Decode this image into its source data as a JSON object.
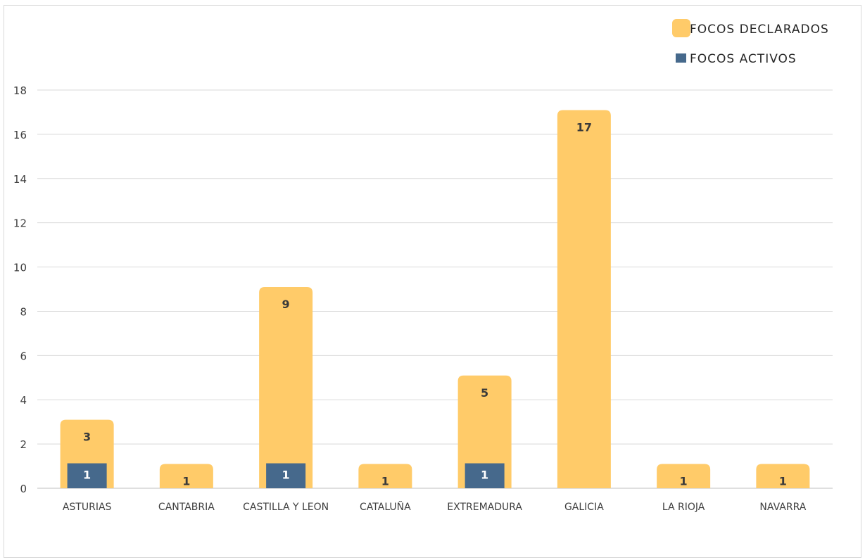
{
  "chart_data": {
    "type": "bar",
    "categories": [
      "ASTURIAS",
      "CANTABRIA",
      "CASTILLA Y LEON",
      "CATALUÑA",
      "EXTREMADURA",
      "GALICIA",
      "LA RIOJA",
      "NAVARRA"
    ],
    "series": [
      {
        "name": "FOCOS DECLARADOS",
        "values": [
          3,
          1,
          9,
          1,
          5,
          17,
          1,
          1
        ],
        "color": "#FFCB69"
      },
      {
        "name": "FOCOS ACTIVOS",
        "values": [
          1,
          0,
          1,
          0,
          1,
          0,
          0,
          0
        ],
        "color": "#46698C"
      }
    ],
    "ylim": [
      0,
      18
    ],
    "yticks": [
      0,
      2,
      4,
      6,
      8,
      10,
      12,
      14,
      16,
      18
    ],
    "grid": true,
    "legend_position": "top-right",
    "overlapped_bars": true
  }
}
